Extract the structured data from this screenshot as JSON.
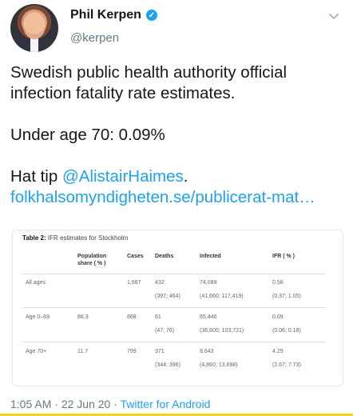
{
  "header": {
    "display_name": "Phil Kerpen",
    "handle": "@kerpen",
    "verified_symbol": "✓"
  },
  "tweet": {
    "line1": "Swedish public health authority official infection fatality rate estimates.",
    "line2": "Under age 70: 0.09%",
    "hat_tip_prefix": "Hat tip",
    "hat_tip_handle": "@AlistairHaimes",
    "hat_tip_suffix": ".",
    "url": "folkhalsomyndigheten.se/publicerat-mat…"
  },
  "table_card": {
    "caption_label": "Table 2:",
    "caption_text": "IFR estimates for Stockholm",
    "headers": [
      "Population share ( % )",
      "Cases",
      "Deaths",
      "Infected",
      "IFR ( % )"
    ],
    "rows": [
      {
        "label": "All ages",
        "pop": "",
        "cases": "1,667",
        "deaths": "432",
        "deaths_ci": "(397; 464)",
        "infected": "74,089",
        "infected_ci": "(41,660; 117,419)",
        "ifr": "0.58",
        "ifr_ci": "(0.37; 1.05)"
      },
      {
        "label": "Age 0–69",
        "pop": "88.3",
        "cases": "868",
        "deaths": "61",
        "deaths_ci": "(47; 76)",
        "infected": "65,446",
        "infected_ci": "(36,800; 103,721)",
        "ifr": "0.09",
        "ifr_ci": "(0.06; 0.18)"
      },
      {
        "label": "Age 70+",
        "pop": "11.7",
        "cases": "799",
        "deaths": "371",
        "deaths_ci": "(344; 396)",
        "infected": "8,643",
        "infected_ci": "(4,860; 13,698)",
        "ifr": "4.29",
        "ifr_ci": "(2.67; 7.73)"
      }
    ]
  },
  "footer": {
    "time": "1:05 AM",
    "sep1": " · ",
    "date": "22 Jun 20",
    "sep2": " · ",
    "client": "Twitter for Android"
  }
}
